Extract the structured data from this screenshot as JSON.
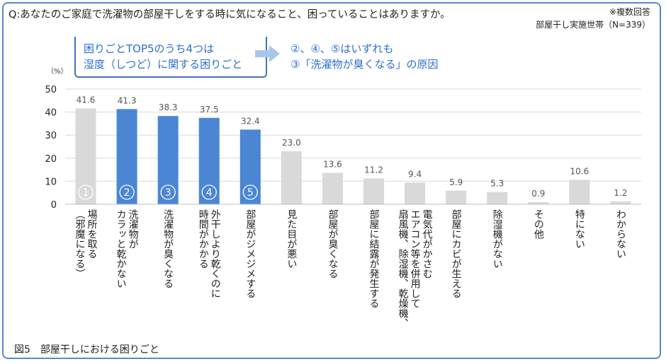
{
  "question": "Q:あなたのご家庭で洗濯物の部屋干しをする時に気になること、困っていることはありますか。",
  "note_multiple": "※複数回答",
  "note_base": "部屋干し実施世帯（N=339）",
  "callout": {
    "line1": "困りごとTOP5のうち4つは",
    "line2": "湿度（しつど）に関する困りごと"
  },
  "result": {
    "line1": "②、④、⑤はいずれも",
    "line2": "③「洗濯物が臭くなる」の原因"
  },
  "caption": "図5　部屋干しにおける困りごと",
  "colors": {
    "highlight": "#4a86d4",
    "normal": "#d9d9d9",
    "accent_text": "#2e6fd1",
    "frame": "#5b87c5"
  },
  "chart_data": {
    "type": "bar",
    "unit_label": "（%）",
    "ylim": [
      0,
      50
    ],
    "yticks": [
      "0",
      "10",
      "20",
      "30",
      "40",
      "50"
    ],
    "grid": true,
    "categories": [
      [
        "場所を取る",
        "（邪魔になる）"
      ],
      [
        "洗濯物が",
        "カラッと乾かない"
      ],
      [
        "洗濯物が臭くなる"
      ],
      [
        "外干しより乾くのに",
        "時間がかかる"
      ],
      [
        "部屋がジメジメする"
      ],
      [
        "見た目が悪い"
      ],
      [
        "部屋が臭くなる"
      ],
      [
        "部屋に結露が発生する"
      ],
      [
        "電気代がかさむ",
        "エアコン等を併用して",
        "扇風機、除湿機、乾燥機、"
      ],
      [
        "部屋にカビが生える"
      ],
      [
        "除湿機がない"
      ],
      [
        "その他"
      ],
      [
        "特にない"
      ],
      [
        "わからない"
      ]
    ],
    "values": [
      41.6,
      41.3,
      38.3,
      37.5,
      32.4,
      23.0,
      13.6,
      11.2,
      9.4,
      5.9,
      5.3,
      0.9,
      10.6,
      1.2
    ],
    "value_labels": [
      "41.6",
      "41.3",
      "38.3",
      "37.5",
      "32.4",
      "23.0",
      "13.6",
      "11.2",
      "9.4",
      "5.9",
      "5.3",
      "0.9",
      "10.6",
      "1.2"
    ],
    "rank_labels": [
      "1",
      "2",
      "3",
      "4",
      "5"
    ],
    "highlighted": [
      false,
      true,
      true,
      true,
      true,
      false,
      false,
      false,
      false,
      false,
      false,
      false,
      false,
      false
    ]
  }
}
